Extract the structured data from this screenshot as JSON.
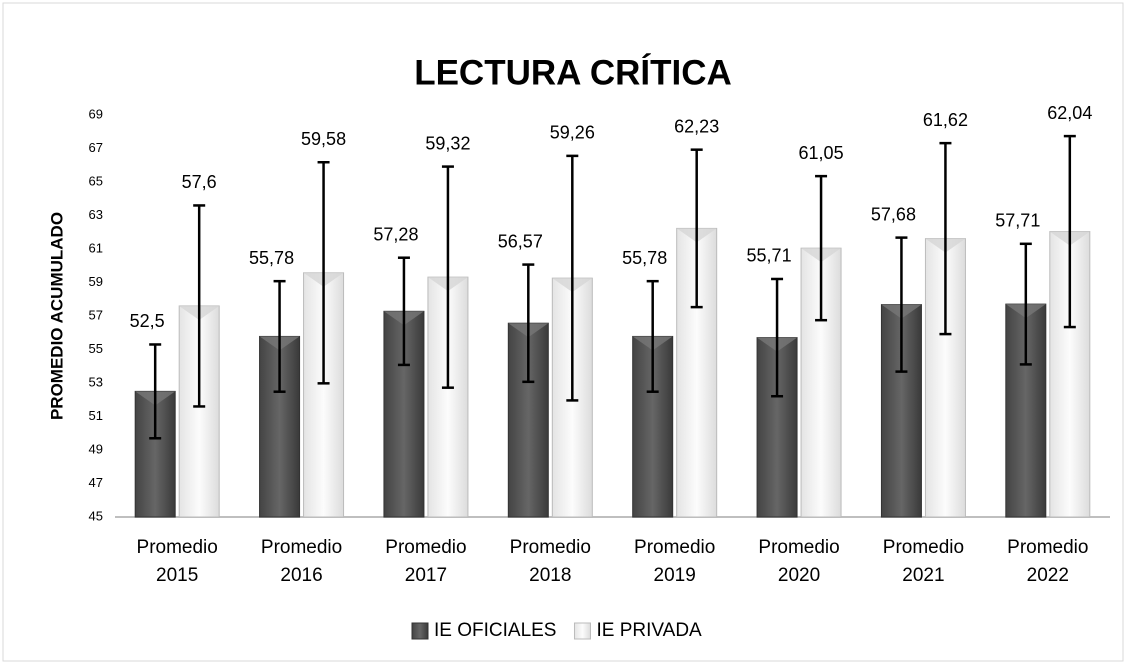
{
  "chart_data": {
    "type": "bar",
    "title": "LECTURA CRÍTICA",
    "y_label": "PROMEDIO ACUMULADO",
    "categories": [
      "Promedio 2015",
      "Promedio 2016",
      "Promedio 2017",
      "Promedio 2018",
      "Promedio 2019",
      "Promedio 2020",
      "Promedio 2021",
      "Promedio 2022"
    ],
    "series": [
      {
        "name": "IE OFICIALES",
        "color": "#555555",
        "values": [
          52.5,
          55.78,
          57.28,
          56.57,
          55.78,
          55.71,
          57.68,
          57.71
        ],
        "value_labels": [
          "52,5",
          "55,78",
          "57,28",
          "56,57",
          "55,78",
          "55,71",
          "57,68",
          "57,71"
        ],
        "errors": [
          2.8,
          3.3,
          3.2,
          3.5,
          3.3,
          3.5,
          4.0,
          3.6
        ]
      },
      {
        "name": "IE PRIVADA",
        "color": "#eeeeee",
        "values": [
          57.6,
          59.58,
          59.32,
          59.26,
          62.23,
          61.05,
          61.62,
          62.04
        ],
        "value_labels": [
          "57,6",
          "59,58",
          "59,32",
          "59,26",
          "62,23",
          "61,05",
          "61,62",
          "62,04"
        ],
        "errors": [
          6.0,
          6.6,
          6.6,
          7.3,
          4.7,
          4.3,
          5.7,
          5.7
        ]
      }
    ],
    "ylim": [
      45,
      69
    ],
    "yticks": [
      45,
      47,
      49,
      51,
      53,
      55,
      57,
      59,
      61,
      63,
      65,
      67,
      69
    ],
    "legend": "bottom"
  }
}
